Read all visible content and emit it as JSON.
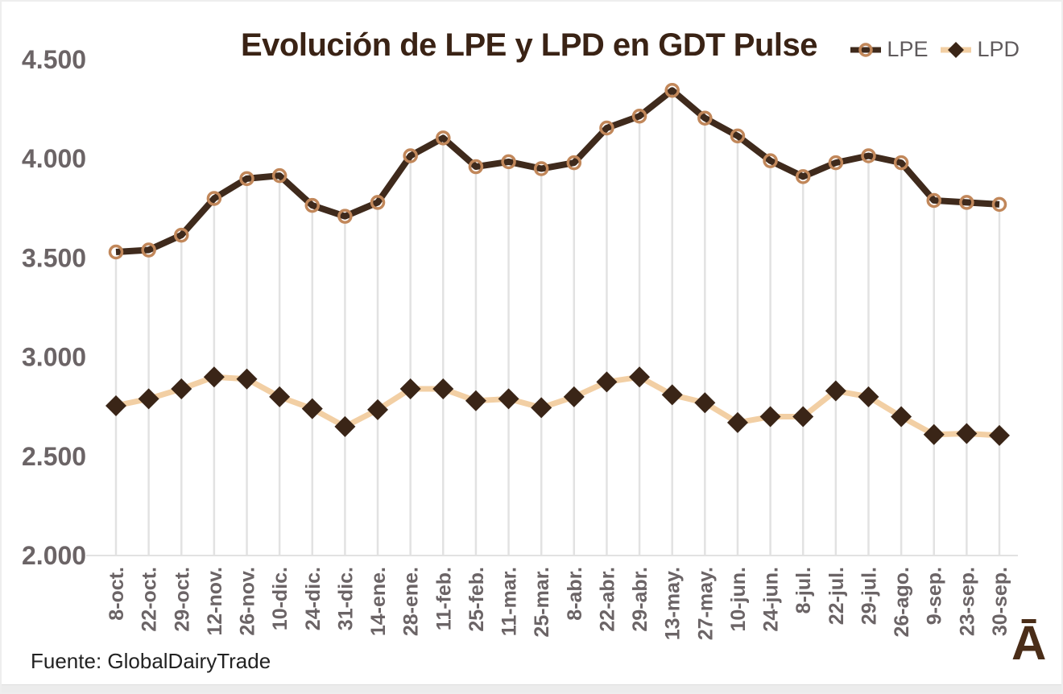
{
  "title": "Evolución de LPE y LPD en GDT Pulse",
  "source": "Fuente: GlobalDairyTrade",
  "logo": "Ā",
  "legend": [
    {
      "label": "LPE",
      "marker": "circle"
    },
    {
      "label": "LPD",
      "marker": "diamond"
    }
  ],
  "colors": {
    "lpe_line": "#3f2a1c",
    "lpe_ring": "#c1875a",
    "lpd_line": "#f2cfa4",
    "lpd_marker": "#3a2517",
    "dropline": "#e2e2e2",
    "axis_line": "#d9d9d9",
    "tick_text": "#6b6466",
    "title_text": "#3a2315"
  },
  "chart_data": {
    "type": "line",
    "title": "Evolución de LPE y LPD en GDT Pulse",
    "xlabel": "",
    "ylabel": "",
    "ylim": [
      2000,
      4500
    ],
    "grid": "vertical droplines from LPE points to x-axis",
    "legend_position": "top-right",
    "yticks": [
      {
        "value": 4500,
        "label": "4.500"
      },
      {
        "value": 4000,
        "label": "4.000"
      },
      {
        "value": 3500,
        "label": "3.500"
      },
      {
        "value": 3000,
        "label": "3.000"
      },
      {
        "value": 2500,
        "label": "2.500"
      },
      {
        "value": 2000,
        "label": "2.000"
      }
    ],
    "categories": [
      "8-oct.",
      "22-oct.",
      "29-oct.",
      "12-nov.",
      "26-nov.",
      "10-dic.",
      "24-dic.",
      "31-dic.",
      "14-ene.",
      "28-ene.",
      "11-feb.",
      "25-feb.",
      "11-mar.",
      "25-mar.",
      "8-abr.",
      "22-abr.",
      "29-abr.",
      "13-may.",
      "27-may.",
      "10-jun.",
      "24-jun.",
      "8-jul.",
      "22-jul.",
      "29-jul.",
      "26-ago.",
      "9-sep.",
      "23-sep.",
      "30-sep."
    ],
    "series": [
      {
        "name": "LPE",
        "marker": "circle",
        "values": [
          3530,
          3540,
          3615,
          3800,
          3900,
          3915,
          3765,
          3710,
          3780,
          4015,
          4105,
          3960,
          3985,
          3950,
          3980,
          4155,
          4215,
          4345,
          4205,
          4115,
          3990,
          3910,
          3980,
          4015,
          3980,
          3790,
          3780,
          3770
        ]
      },
      {
        "name": "LPD",
        "marker": "diamond",
        "values": [
          2755,
          2790,
          2840,
          2900,
          2890,
          2800,
          2740,
          2650,
          2735,
          2840,
          2840,
          2780,
          2790,
          2745,
          2800,
          2875,
          2900,
          2810,
          2770,
          2670,
          2700,
          2700,
          2830,
          2800,
          2700,
          2610,
          2615,
          2605
        ]
      }
    ]
  }
}
